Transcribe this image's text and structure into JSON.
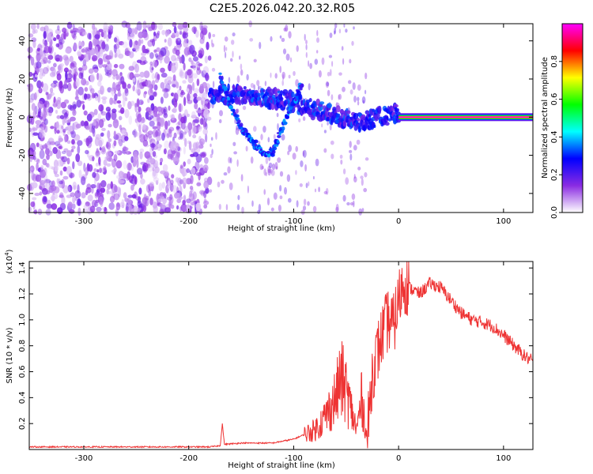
{
  "chart_data": [
    {
      "type": "heatmap",
      "title": "C2E5.2026.042.20.32.R05",
      "xlabel": "Height of straight line (km)",
      "ylabel": "Frequency (Hz)",
      "xlim": [
        -352,
        128
      ],
      "ylim": [
        -50,
        49
      ],
      "xticks": [
        -300,
        -200,
        -100,
        0,
        100
      ],
      "xtick_labels": [
        "-300",
        "-200",
        "-100",
        "0",
        "100"
      ],
      "yticks": [
        -40,
        -20,
        0,
        20,
        40
      ],
      "ytick_labels": [
        "-40",
        "-20",
        "0",
        "20",
        "40"
      ],
      "colorbar": {
        "label": "Normalized spectral amplitude",
        "range": [
          0,
          1
        ],
        "ticks": [
          0.0,
          0.2,
          0.4,
          0.6,
          0.8
        ],
        "tick_labels": [
          "0.0",
          "0.2",
          "0.4",
          "0.6",
          "0.8"
        ],
        "colors": [
          "#ffffff",
          "#8a2be2",
          "#0000ff",
          "#00ffff",
          "#00ff00",
          "#ffff00",
          "#ff0000",
          "#ff00ff"
        ]
      },
      "features": [
        {
          "name": "noise-region",
          "x_range": [
            -352,
            -180
          ],
          "amplitude": 0.15
        },
        {
          "name": "main-band",
          "points": [
            [
              -180,
              12
            ],
            [
              -150,
              12
            ],
            [
              -120,
              10
            ],
            [
              -100,
              8
            ],
            [
              -80,
              4
            ],
            [
              -60,
              1
            ],
            [
              -40,
              -3
            ],
            [
              -20,
              0
            ],
            [
              0,
              2
            ],
            [
              128,
              0
            ]
          ],
          "amplitude": 0.25
        },
        {
          "name": "v-feature",
          "points": [
            [
              -170,
              22
            ],
            [
              -160,
              5
            ],
            [
              -150,
              -5
            ],
            [
              -140,
              -12
            ],
            [
              -128,
              -20
            ],
            [
              -120,
              -18
            ],
            [
              -110,
              -5
            ],
            [
              -100,
              8
            ],
            [
              -92,
              18
            ]
          ],
          "amplitude": 0.3
        },
        {
          "name": "carrier-line",
          "x_range": [
            0,
            128
          ],
          "y": 0,
          "amplitude": 1.0
        }
      ]
    },
    {
      "type": "line",
      "xlabel": "Height of straight line (km)",
      "ylabel": "SNR (10 * v/v)",
      "y_scale_label": "(x10",
      "y_scale_exp": "4",
      "y_scale_close": ")",
      "xlim": [
        -352,
        128
      ],
      "ylim": [
        0,
        1.45
      ],
      "xticks": [
        -300,
        -200,
        -100,
        0,
        100
      ],
      "xtick_labels": [
        "-300",
        "-200",
        "-100",
        "0",
        "100"
      ],
      "yticks": [
        0.2,
        0.4,
        0.6,
        0.8,
        1.0,
        1.2,
        1.4
      ],
      "ytick_labels": [
        "0.2",
        "0.4",
        "0.6",
        "0.8",
        "1.0",
        "1.2",
        "1.4"
      ],
      "color": "#ee3333",
      "series": [
        {
          "name": "SNR",
          "x": [
            -352,
            -300,
            -250,
            -200,
            -180,
            -170,
            -168,
            -166,
            -150,
            -120,
            -100,
            -80,
            -70,
            -60,
            -55,
            -50,
            -45,
            -40,
            -35,
            -30,
            -25,
            -20,
            -15,
            -10,
            -5,
            0,
            5,
            10,
            20,
            30,
            40,
            50,
            60,
            70,
            80,
            90,
            100,
            110,
            120,
            128
          ],
          "y": [
            0.02,
            0.02,
            0.02,
            0.02,
            0.02,
            0.03,
            0.2,
            0.04,
            0.05,
            0.05,
            0.08,
            0.15,
            0.25,
            0.4,
            0.55,
            0.45,
            0.3,
            0.15,
            0.4,
            0.08,
            0.6,
            0.75,
            0.9,
            1.0,
            0.95,
            1.15,
            1.3,
            1.25,
            1.2,
            1.28,
            1.25,
            1.15,
            1.05,
            1.0,
            0.98,
            0.95,
            0.88,
            0.8,
            0.72,
            0.68
          ]
        }
      ]
    }
  ]
}
